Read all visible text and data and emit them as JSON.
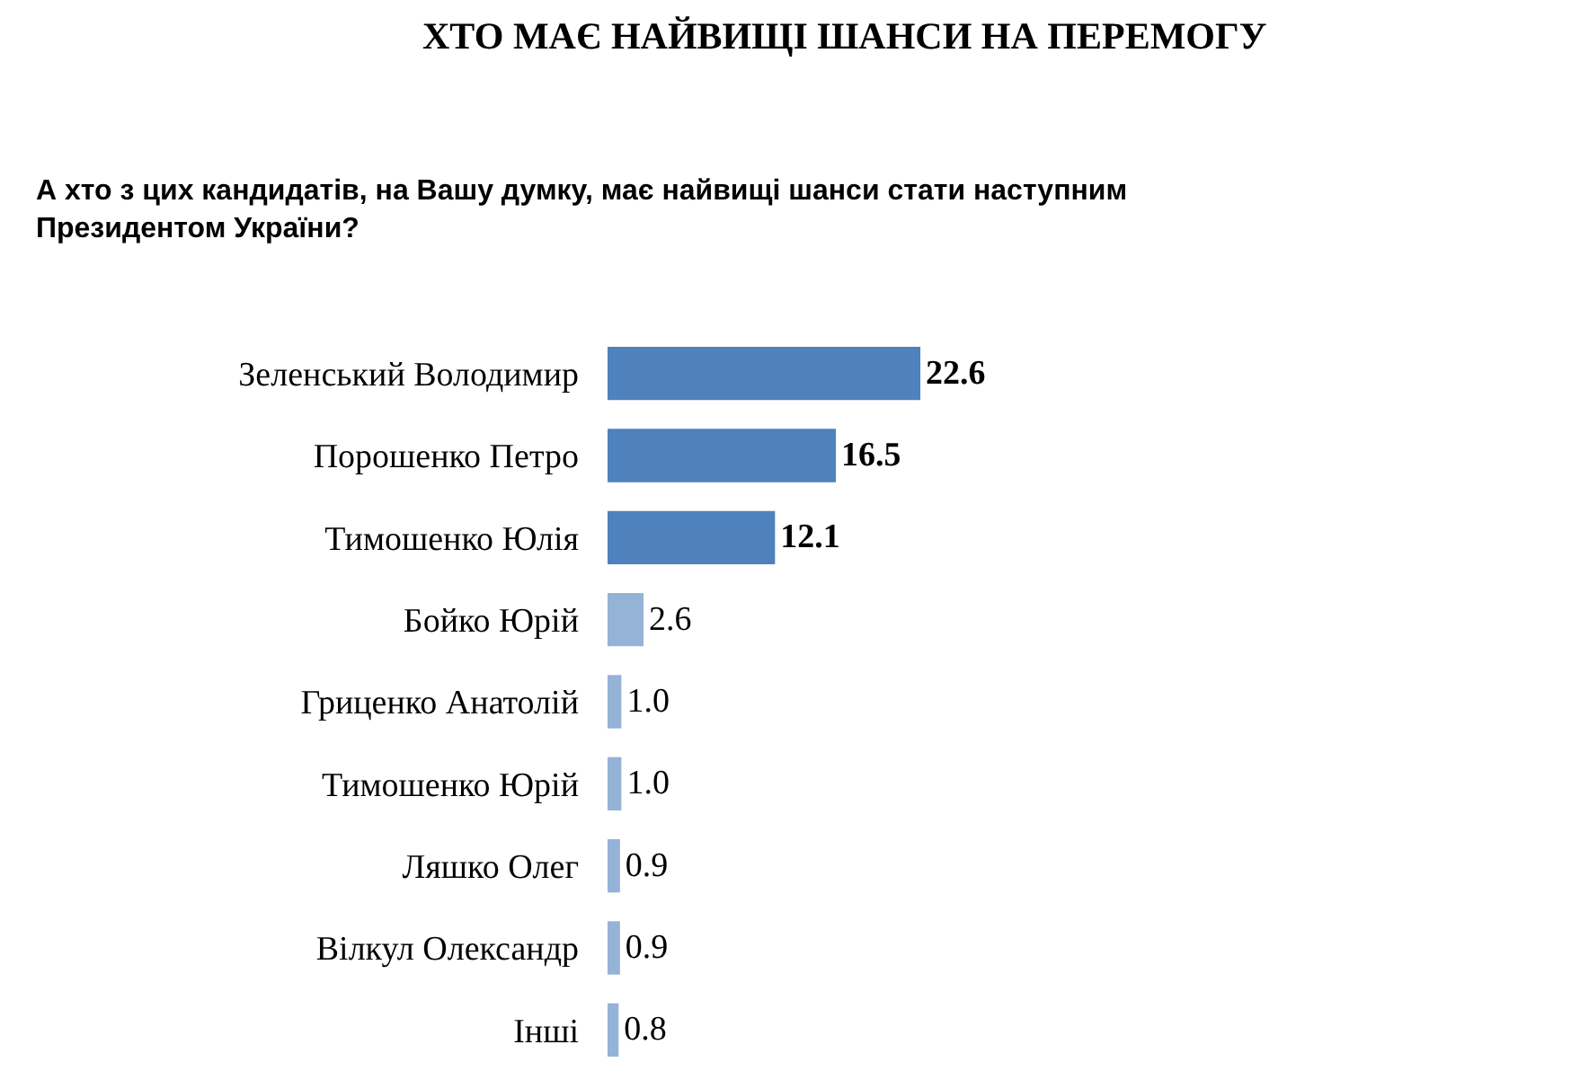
{
  "chart_data": {
    "type": "bar",
    "orientation": "horizontal",
    "title": "ХТО МАЄ НАЙВИЩІ ШАНСИ НА ПЕРЕМОГУ",
    "subtitle": "А хто з цих кандидатів, на Вашу думку, має найвищі шанси стати наступним Президентом України?",
    "categories": [
      "Зеленський Володимир",
      "Порошенко Петро",
      "Тимошенко Юлія",
      "Бойко Юрій",
      "Гриценко Анатолій",
      "Тимошенко Юрій",
      "Ляшко Олег",
      "Вілкул Олександр",
      "Інші"
    ],
    "values": [
      22.6,
      16.5,
      12.1,
      2.6,
      1.0,
      1.0,
      0.9,
      0.9,
      0.8
    ],
    "value_labels": [
      "22.6",
      "16.5",
      "12.1",
      "2.6",
      "1.0",
      "1.0",
      "0.9",
      "0.9",
      "0.8"
    ],
    "colors": [
      "#4f81bd",
      "#4f81bd",
      "#4f81bd",
      "#95b3d7",
      "#95b3d7",
      "#95b3d7",
      "#95b3d7",
      "#95b3d7",
      "#95b3d7"
    ]
  }
}
